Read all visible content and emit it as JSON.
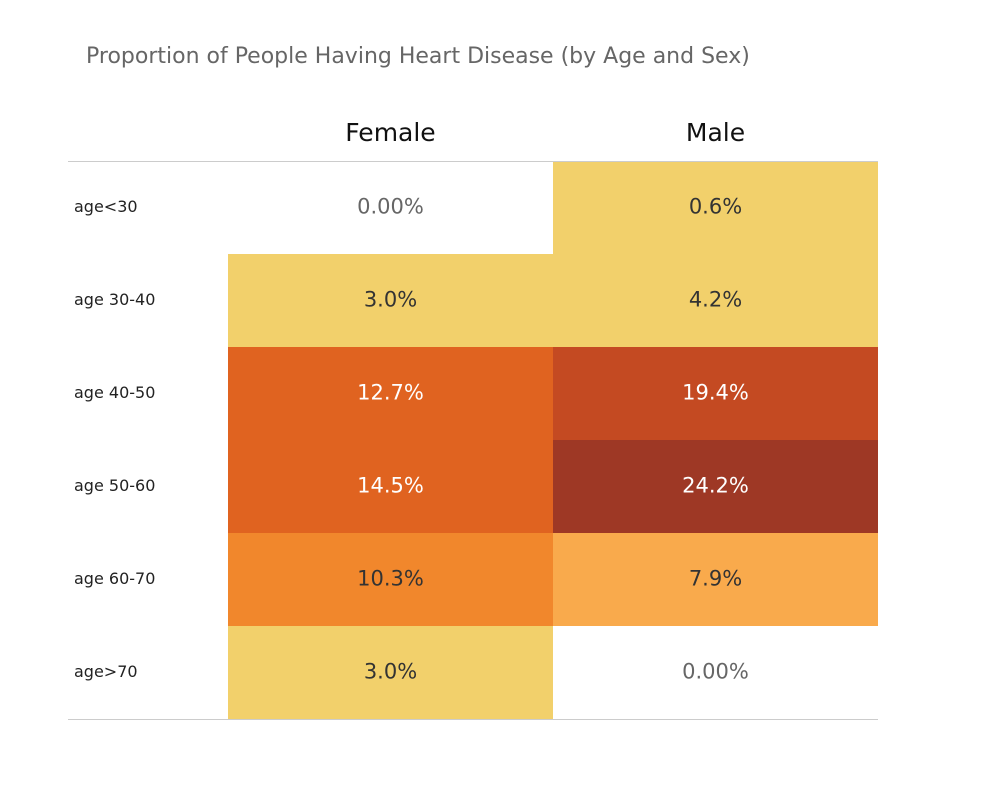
{
  "chart_data": {
    "type": "heatmap",
    "title": "Proportion of People Having Heart Disease (by Age and Sex)",
    "columns": [
      "Female",
      "Male"
    ],
    "rows": [
      "age<30",
      "age 30-40",
      "age 40-50",
      "age 50-60",
      "age 60-70",
      "age>70"
    ],
    "values": [
      [
        0.0,
        0.6
      ],
      [
        3.0,
        4.2
      ],
      [
        12.7,
        19.4
      ],
      [
        14.5,
        24.2
      ],
      [
        10.3,
        7.9
      ],
      [
        3.0,
        0.0
      ]
    ],
    "labels": [
      [
        "0.00%",
        "0.6%"
      ],
      [
        "3.0%",
        "4.2%"
      ],
      [
        "12.7%",
        "19.4%"
      ],
      [
        "14.5%",
        "24.2%"
      ],
      [
        "10.3%",
        "7.9%"
      ],
      [
        "3.0%",
        "0.00%"
      ]
    ],
    "unit": "%",
    "color_scale": {
      "stops": [
        {
          "max": 0.0,
          "color": "#ffffff",
          "text": "#666666"
        },
        {
          "max": 5.0,
          "color": "#f2d06b",
          "text": "#333333"
        },
        {
          "max": 9.0,
          "color": "#f9aa4c",
          "text": "#333333"
        },
        {
          "max": 11.0,
          "color": "#f1872c",
          "text": "#333333"
        },
        {
          "max": 16.0,
          "color": "#e06320",
          "text": "#ffffff"
        },
        {
          "max": 21.0,
          "color": "#c44a22",
          "text": "#ffffff"
        },
        {
          "max": 100.0,
          "color": "#9e3825",
          "text": "#ffffff"
        }
      ]
    },
    "divider_color": "#cccccc"
  }
}
